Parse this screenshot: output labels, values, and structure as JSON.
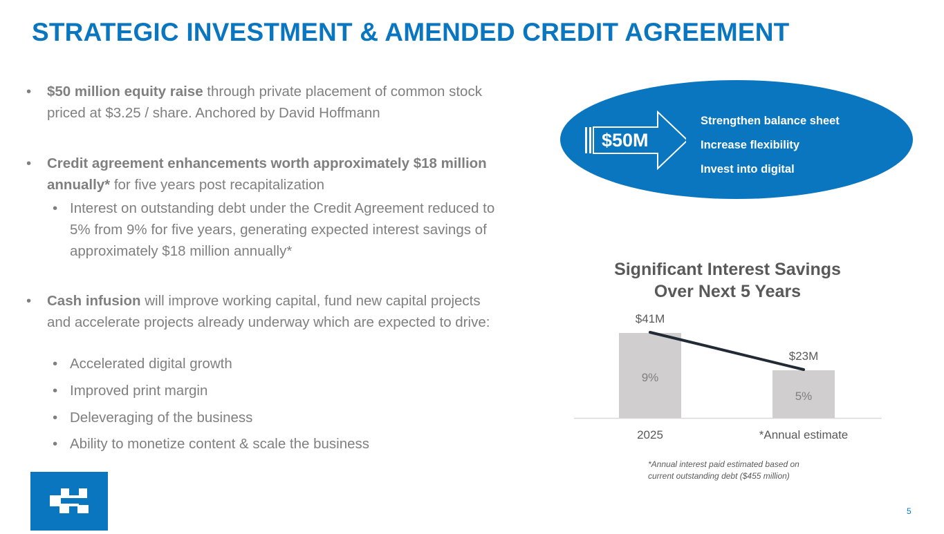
{
  "slide": {
    "title": "STRATEGIC INVESTMENT & AMENDED CREDIT AGREEMENT",
    "page_number": "5"
  },
  "bullets": {
    "b1": {
      "bold": "$50 million equity raise",
      "rest": " through private placement of common stock priced at $3.25 / share. Anchored by David Hoffmann"
    },
    "b2": {
      "bold": "Credit agreement enhancements worth approximately $18 million annually*",
      "rest": " for five years post recapitalization"
    },
    "b2_sub": "Interest on outstanding debt under the Credit Agreement reduced to 5% from 9% for five years, generating expected interest savings of approximately $18 million annually*",
    "b3": {
      "bold": "Cash infusion",
      "rest": " will improve working capital, fund new capital projects and accelerate projects already underway which are expected to drive:"
    },
    "b3_subs": [
      "Accelerated digital growth",
      "Improved print margin",
      "Deleveraging of the business",
      "Ability to monetize content & scale the business"
    ],
    "bullet_char": "•"
  },
  "callout": {
    "amount": "$50M",
    "benefits": [
      "Strengthen balance sheet",
      "Increase flexibility",
      "Invest into digital"
    ],
    "color": "#0a76c0"
  },
  "chart": {
    "title_line1": "Significant Interest Savings",
    "title_line2": "Over Next 5 Years",
    "footnote_line1": "*Annual interest paid estimated based on",
    "footnote_line2": "current outstanding debt ($455 million)"
  },
  "chart_data": {
    "type": "bar",
    "categories": [
      "2025",
      "*Annual estimate"
    ],
    "values": [
      41,
      23
    ],
    "value_labels": [
      "$41M",
      "$23M"
    ],
    "inner_labels": [
      "9%",
      "5%"
    ],
    "ylim": [
      0,
      45
    ],
    "bar_color": "#d0cece",
    "trend_line_color": "#222a35",
    "grid": false
  }
}
